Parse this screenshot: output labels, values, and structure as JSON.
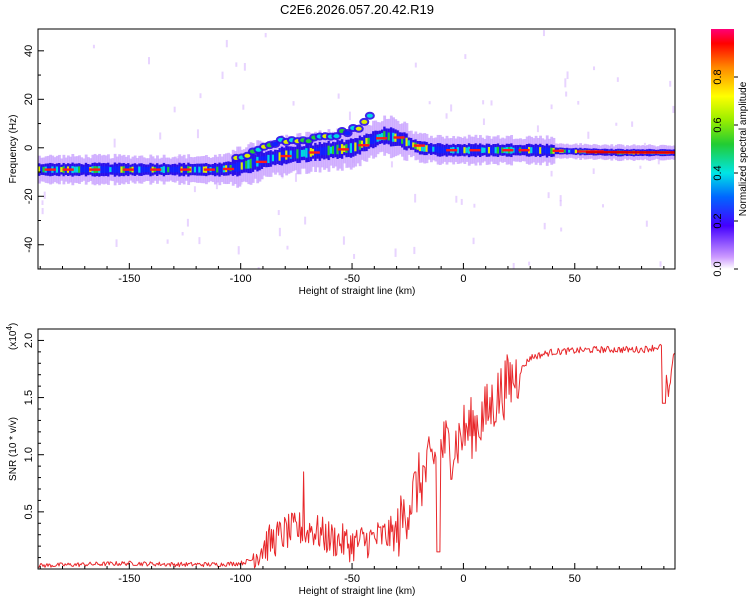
{
  "chart_data": [
    {
      "type": "heatmap",
      "title": "C2E6.2026.057.20.42.R19",
      "xlabel": "Height of straight line (km)",
      "ylabel": "Frequency (Hz)",
      "xlim": [
        -191,
        95
      ],
      "ylim": [
        -50,
        49
      ],
      "xticks": [
        -150,
        -100,
        -50,
        0,
        50
      ],
      "yticks": [
        -40,
        -20,
        0,
        20,
        40
      ],
      "colorbar": {
        "label": "Normalized spectral amplitude",
        "range": [
          0,
          1
        ],
        "ticks": [
          "0.0",
          "0.2",
          "0.4",
          "0.6",
          "0.8"
        ]
      },
      "ridge": {
        "x": [
          -191,
          -160,
          -130,
          -110,
          -102,
          -90,
          -80,
          -70,
          -60,
          -50,
          -42,
          -36,
          -30,
          -25,
          -20,
          -10,
          0,
          10,
          20,
          30,
          50,
          70,
          95
        ],
        "y": [
          -9,
          -9,
          -9,
          -9,
          -8,
          -5,
          -3,
          -2,
          -1,
          0,
          3,
          5,
          4,
          2,
          0,
          -1,
          -1,
          -1,
          -1,
          -1,
          -1.5,
          -2,
          -2
        ]
      },
      "upper_branch": {
        "x": [
          -102,
          -90,
          -80,
          -70,
          -60,
          -50,
          -45,
          -40
        ],
        "y": [
          -5,
          0,
          3,
          3,
          5,
          7,
          10,
          14
        ]
      }
    },
    {
      "type": "line",
      "title": "",
      "xlabel": "Height of straight line (km)",
      "ylabel": "SNR (10 * v/v)",
      "scale_label": "(x10",
      "scale_exponent": "4",
      "scale_close": ")",
      "xlim": [
        -191,
        95
      ],
      "ylim": [
        0,
        2.1
      ],
      "xticks": [
        -150,
        -100,
        -50,
        0,
        50
      ],
      "yticks": [
        0.5,
        1.0,
        1.5,
        2.0
      ],
      "ytick_labels": [
        "0.5",
        "1.0",
        "1.5",
        "2.0"
      ],
      "series": [
        {
          "name": "SNR",
          "color": "#e8282b",
          "x": [
            -191,
            -170,
            -150,
            -130,
            -110,
            -100,
            -95,
            -90,
            -80,
            -70,
            -60,
            -50,
            -40,
            -30,
            -25,
            -20,
            -15,
            -10,
            -5,
            0,
            5,
            10,
            15,
            20,
            25,
            30,
            40,
            60,
            80,
            90,
            92,
            95
          ],
          "y": [
            0.03,
            0.04,
            0.05,
            0.04,
            0.04,
            0.05,
            0.08,
            0.18,
            0.3,
            0.35,
            0.25,
            0.2,
            0.25,
            0.3,
            0.55,
            0.75,
            0.9,
            1.1,
            1.05,
            1.2,
            1.25,
            1.35,
            1.5,
            1.62,
            1.72,
            1.85,
            1.9,
            1.92,
            1.92,
            1.95,
            1.5,
            1.95
          ]
        }
      ]
    }
  ]
}
